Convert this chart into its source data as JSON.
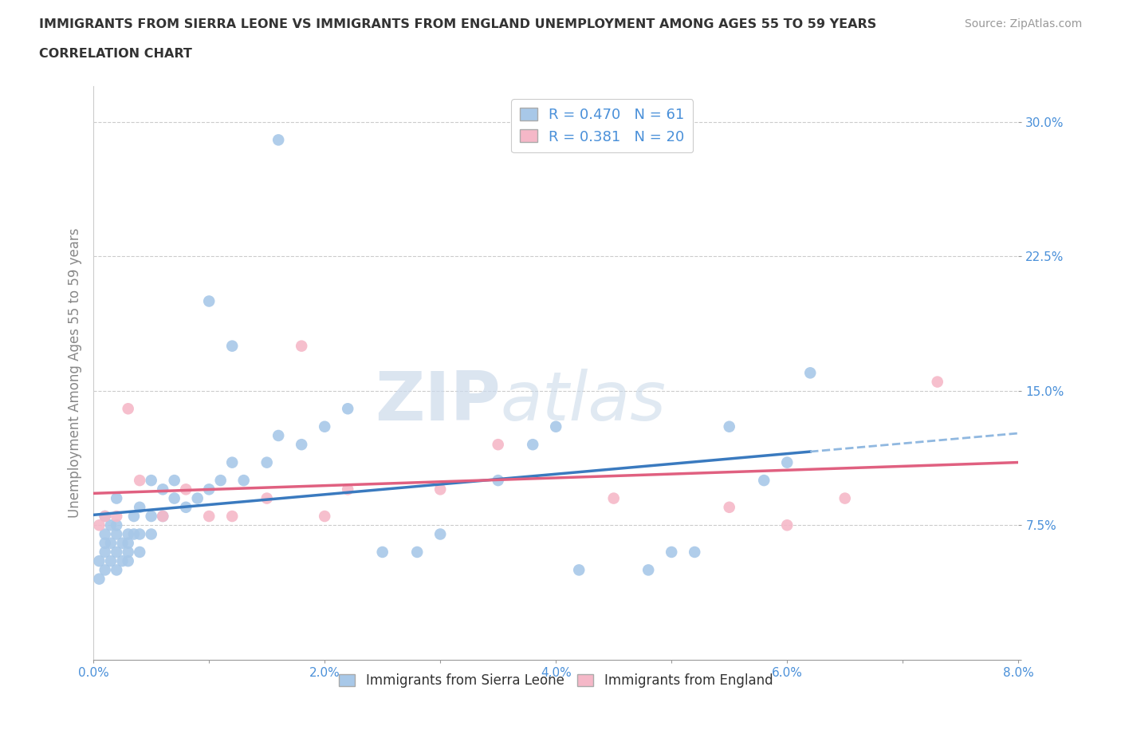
{
  "title_line1": "IMMIGRANTS FROM SIERRA LEONE VS IMMIGRANTS FROM ENGLAND UNEMPLOYMENT AMONG AGES 55 TO 59 YEARS",
  "title_line2": "CORRELATION CHART",
  "source_text": "Source: ZipAtlas.com",
  "ylabel": "Unemployment Among Ages 55 to 59 years",
  "xlim": [
    0.0,
    0.08
  ],
  "ylim": [
    0.0,
    0.32
  ],
  "xticks": [
    0.0,
    0.01,
    0.02,
    0.03,
    0.04,
    0.05,
    0.06,
    0.07,
    0.08
  ],
  "xticklabels": [
    "0.0%",
    "",
    "2.0%",
    "",
    "4.0%",
    "",
    "6.0%",
    "",
    "8.0%"
  ],
  "ytick_positions": [
    0.0,
    0.075,
    0.15,
    0.225,
    0.3
  ],
  "ytick_labels": [
    "",
    "7.5%",
    "15.0%",
    "22.5%",
    "30.0%"
  ],
  "sierra_leone_R": 0.47,
  "sierra_leone_N": 61,
  "england_R": 0.381,
  "england_N": 20,
  "blue_color": "#a8c8e8",
  "pink_color": "#f5b8c8",
  "blue_line_color": "#3a7abf",
  "pink_line_color": "#e06080",
  "dashed_line_color": "#90b8e0",
  "tick_label_color": "#4a90d9",
  "watermark_color": "#ccdaeb",
  "watermark_text": "ZIPatlas",
  "sierra_leone_x": [
    0.0005,
    0.0005,
    0.001,
    0.001,
    0.001,
    0.001,
    0.001,
    0.0015,
    0.0015,
    0.0015,
    0.002,
    0.002,
    0.002,
    0.002,
    0.002,
    0.0025,
    0.0025,
    0.003,
    0.003,
    0.003,
    0.003,
    0.0035,
    0.0035,
    0.004,
    0.004,
    0.004,
    0.005,
    0.005,
    0.005,
    0.006,
    0.006,
    0.007,
    0.007,
    0.008,
    0.009,
    0.01,
    0.011,
    0.012,
    0.013,
    0.015,
    0.016,
    0.018,
    0.02,
    0.022,
    0.025,
    0.028,
    0.03,
    0.035,
    0.038,
    0.04,
    0.042,
    0.048,
    0.05,
    0.052,
    0.055,
    0.058,
    0.06,
    0.062,
    0.01,
    0.012,
    0.016
  ],
  "sierra_leone_y": [
    0.045,
    0.055,
    0.05,
    0.06,
    0.065,
    0.07,
    0.08,
    0.055,
    0.065,
    0.075,
    0.05,
    0.06,
    0.07,
    0.075,
    0.09,
    0.055,
    0.065,
    0.055,
    0.06,
    0.065,
    0.07,
    0.07,
    0.08,
    0.06,
    0.07,
    0.085,
    0.07,
    0.08,
    0.1,
    0.08,
    0.095,
    0.09,
    0.1,
    0.085,
    0.09,
    0.095,
    0.1,
    0.11,
    0.1,
    0.11,
    0.125,
    0.12,
    0.13,
    0.14,
    0.06,
    0.06,
    0.07,
    0.1,
    0.12,
    0.13,
    0.05,
    0.05,
    0.06,
    0.06,
    0.13,
    0.1,
    0.11,
    0.16,
    0.2,
    0.175,
    0.29
  ],
  "england_x": [
    0.0005,
    0.001,
    0.002,
    0.003,
    0.004,
    0.006,
    0.008,
    0.01,
    0.012,
    0.015,
    0.018,
    0.02,
    0.022,
    0.03,
    0.035,
    0.045,
    0.055,
    0.06,
    0.065,
    0.073
  ],
  "england_y": [
    0.075,
    0.08,
    0.08,
    0.14,
    0.1,
    0.08,
    0.095,
    0.08,
    0.08,
    0.09,
    0.175,
    0.08,
    0.095,
    0.095,
    0.12,
    0.09,
    0.085,
    0.075,
    0.09,
    0.155
  ]
}
